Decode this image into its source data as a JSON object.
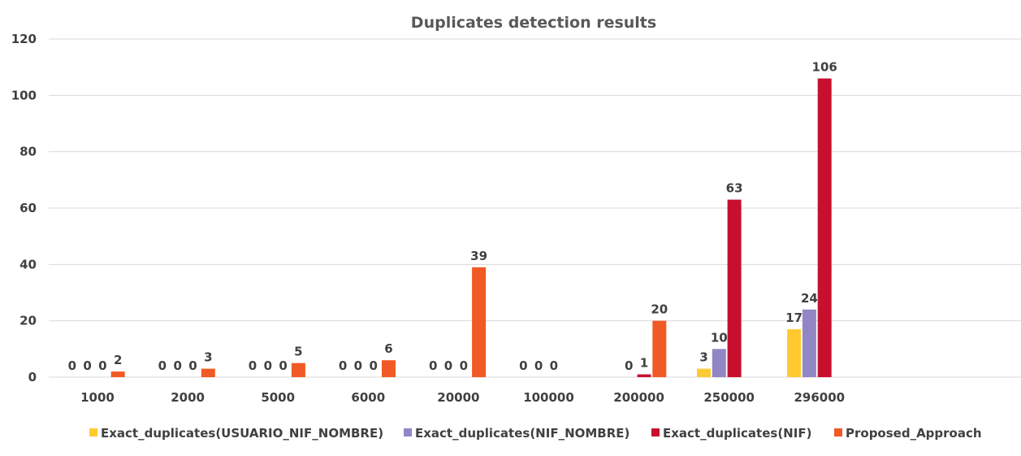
{
  "chart_data": {
    "type": "bar",
    "title": "Duplicates detection results",
    "xlabel": "",
    "ylabel": "",
    "categories": [
      "1000",
      "2000",
      "5000",
      "6000",
      "20000",
      "100000",
      "200000",
      "250000",
      "296000"
    ],
    "ylim": [
      0,
      120
    ],
    "yticks": [
      0,
      20,
      40,
      60,
      80,
      100,
      120
    ],
    "grid": true,
    "legend_position": "bottom",
    "series": [
      {
        "name": "Exact_duplicates(USUARIO_NIF_NOMBRE)",
        "color": "#FFCA30",
        "values": [
          0,
          0,
          0,
          0,
          0,
          0,
          null,
          3,
          17
        ]
      },
      {
        "name": "Exact_duplicates(NIF_NOMBRE)",
        "color": "#9386C4",
        "values": [
          0,
          0,
          0,
          0,
          0,
          0,
          0,
          10,
          24
        ]
      },
      {
        "name": "Exact_duplicates(NIF)",
        "color": "#C8102E",
        "values": [
          0,
          0,
          0,
          0,
          0,
          0,
          1,
          63,
          106
        ]
      },
      {
        "name": "Proposed_Approach",
        "color": "#F15A24",
        "values": [
          2,
          3,
          5,
          6,
          39,
          null,
          20,
          null,
          null
        ]
      }
    ]
  }
}
